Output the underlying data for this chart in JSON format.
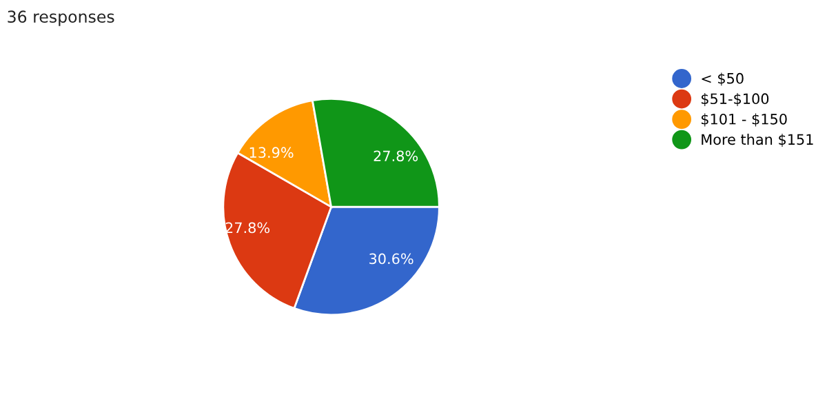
{
  "chart_data": {
    "type": "pie",
    "title": "36 responses",
    "categories": [
      "< $50",
      "$51-$100",
      "$101 - $150",
      "More than $151"
    ],
    "values": [
      30.6,
      27.8,
      13.9,
      27.8
    ],
    "colors": [
      "#3366cc",
      "#dc3912",
      "#ff9900",
      "#109618"
    ],
    "value_labels": [
      "30.6%",
      "27.8%",
      "13.9%",
      "27.8%"
    ],
    "legend": "right"
  }
}
